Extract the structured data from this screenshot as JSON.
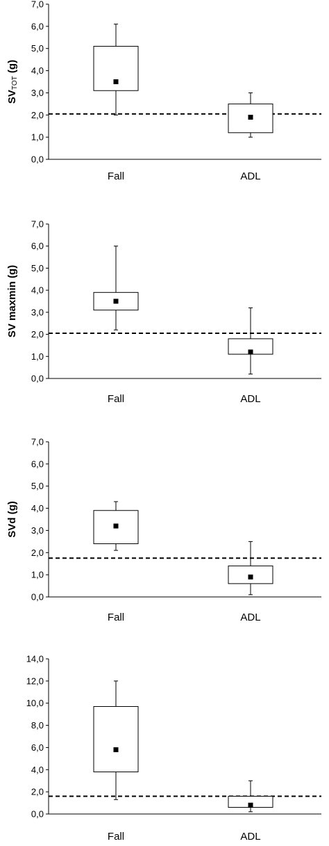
{
  "chart_data": [
    {
      "type": "box",
      "ylabel": "SVTOT (g)",
      "ylabel_main": "SV",
      "ylabel_sub": "TOT",
      "ylabel_suffix": " (g)",
      "ylim": [
        0,
        7
      ],
      "yticks": [
        "0,0",
        "1,0",
        "2,0",
        "3,0",
        "4,0",
        "5,0",
        "6,0",
        "7,0"
      ],
      "categories": [
        "Fall",
        "ADL"
      ],
      "boxes": [
        {
          "min": 2.0,
          "q1": 3.1,
          "q3": 5.1,
          "max": 6.1,
          "mean": 3.5
        },
        {
          "min": 1.0,
          "q1": 1.2,
          "q3": 2.5,
          "max": 3.0,
          "mean": 1.9
        }
      ],
      "threshold": 2.05
    },
    {
      "type": "box",
      "ylabel": "SV maxmin (g)",
      "ylim": [
        0,
        7
      ],
      "yticks": [
        "0,0",
        "1,0",
        "2,0",
        "3,0",
        "4,0",
        "5,0",
        "6,0",
        "7,0"
      ],
      "categories": [
        "Fall",
        "ADL"
      ],
      "boxes": [
        {
          "min": 2.2,
          "q1": 3.1,
          "q3": 3.9,
          "max": 6.0,
          "mean": 3.5
        },
        {
          "min": 0.2,
          "q1": 1.1,
          "q3": 1.8,
          "max": 3.2,
          "mean": 1.2
        }
      ],
      "threshold": 2.05
    },
    {
      "type": "box",
      "ylabel": "SVd (g)",
      "ylim": [
        0,
        7
      ],
      "yticks": [
        "0,0",
        "1,0",
        "2,0",
        "3,0",
        "4,0",
        "5,0",
        "6,0",
        "7,0"
      ],
      "categories": [
        "Fall",
        "ADL"
      ],
      "boxes": [
        {
          "min": 2.1,
          "q1": 2.4,
          "q3": 3.9,
          "max": 4.3,
          "mean": 3.2
        },
        {
          "min": 0.1,
          "q1": 0.6,
          "q3": 1.4,
          "max": 2.5,
          "mean": 0.9
        }
      ],
      "threshold": 1.75
    },
    {
      "type": "box",
      "ylabel": "",
      "ylim": [
        0,
        14
      ],
      "yticks": [
        "0,0",
        "2,0",
        "4,0",
        "6,0",
        "8,0",
        "10,0",
        "12,0",
        "14,0"
      ],
      "categories": [
        "Fall",
        "ADL"
      ],
      "boxes": [
        {
          "min": 1.3,
          "q1": 3.8,
          "q3": 9.7,
          "max": 12.0,
          "mean": 5.8
        },
        {
          "min": 0.2,
          "q1": 0.6,
          "q3": 1.6,
          "max": 3.0,
          "mean": 0.8
        }
      ],
      "threshold": 1.6
    }
  ]
}
